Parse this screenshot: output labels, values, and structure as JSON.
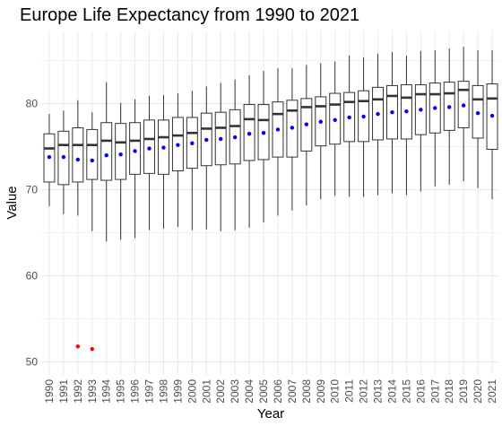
{
  "chart_data": {
    "type": "boxplot",
    "title": "Europe Life Expectancy from 1990 to 2021",
    "xlabel": "Year",
    "ylabel": "Value",
    "ylim": [
      48.5,
      88.5
    ],
    "yticks": [
      50,
      60,
      70,
      80
    ],
    "grid": true,
    "categories": [
      "1990",
      "1991",
      "1992",
      "1993",
      "1994",
      "1995",
      "1996",
      "1997",
      "1998",
      "1999",
      "2000",
      "2001",
      "2002",
      "2003",
      "2004",
      "2005",
      "2006",
      "2007",
      "2008",
      "2009",
      "2010",
      "2011",
      "2012",
      "2013",
      "2014",
      "2015",
      "2016",
      "2017",
      "2018",
      "2019",
      "2020",
      "2021"
    ],
    "boxes": [
      {
        "whisker_low": 68.1,
        "q1": 70.9,
        "median": 74.8,
        "q3": 76.5,
        "whisker_high": 78.8,
        "mean": 73.8
      },
      {
        "whisker_low": 67.2,
        "q1": 70.6,
        "median": 75.2,
        "q3": 76.8,
        "whisker_high": 79.2,
        "mean": 73.8
      },
      {
        "whisker_low": 67.0,
        "q1": 70.9,
        "median": 75.2,
        "q3": 77.2,
        "whisker_high": 80.4,
        "mean": 73.5
      },
      {
        "whisker_low": 65.2,
        "q1": 71.2,
        "median": 75.2,
        "q3": 77.0,
        "whisker_high": 79.0,
        "mean": 73.4
      },
      {
        "whisker_low": 64.0,
        "q1": 71.1,
        "median": 75.7,
        "q3": 77.8,
        "whisker_high": 82.5,
        "mean": 74.0
      },
      {
        "whisker_low": 64.2,
        "q1": 71.2,
        "median": 75.5,
        "q3": 77.7,
        "whisker_high": 80.1,
        "mean": 74.1
      },
      {
        "whisker_low": 64.4,
        "q1": 71.8,
        "median": 75.7,
        "q3": 77.8,
        "whisker_high": 80.5,
        "mean": 74.5
      },
      {
        "whisker_low": 65.3,
        "q1": 71.9,
        "median": 75.9,
        "q3": 78.1,
        "whisker_high": 80.9,
        "mean": 74.8
      },
      {
        "whisker_low": 65.5,
        "q1": 71.8,
        "median": 76.1,
        "q3": 78.1,
        "whisker_high": 81.0,
        "mean": 74.9
      },
      {
        "whisker_low": 65.7,
        "q1": 72.2,
        "median": 76.3,
        "q3": 78.4,
        "whisker_high": 81.2,
        "mean": 75.2
      },
      {
        "whisker_low": 65.3,
        "q1": 72.5,
        "median": 76.6,
        "q3": 78.4,
        "whisker_high": 81.5,
        "mean": 75.4
      },
      {
        "whisker_low": 65.4,
        "q1": 72.8,
        "median": 77.1,
        "q3": 78.9,
        "whisker_high": 82.0,
        "mean": 75.8
      },
      {
        "whisker_low": 65.2,
        "q1": 72.9,
        "median": 77.2,
        "q3": 79.0,
        "whisker_high": 82.4,
        "mean": 75.9
      },
      {
        "whisker_low": 65.3,
        "q1": 73.0,
        "median": 77.4,
        "q3": 79.3,
        "whisker_high": 82.8,
        "mean": 76.1
      },
      {
        "whisker_low": 65.6,
        "q1": 73.4,
        "median": 78.2,
        "q3": 79.9,
        "whisker_high": 83.3,
        "mean": 76.5
      },
      {
        "whisker_low": 66.2,
        "q1": 73.5,
        "median": 78.1,
        "q3": 79.9,
        "whisker_high": 83.8,
        "mean": 76.6
      },
      {
        "whisker_low": 67.0,
        "q1": 73.8,
        "median": 78.8,
        "q3": 80.2,
        "whisker_high": 84.1,
        "mean": 77.0
      },
      {
        "whisker_low": 67.6,
        "q1": 73.8,
        "median": 79.2,
        "q3": 80.4,
        "whisker_high": 84.1,
        "mean": 77.2
      },
      {
        "whisker_low": 68.2,
        "q1": 74.5,
        "median": 79.6,
        "q3": 80.6,
        "whisker_high": 84.5,
        "mean": 77.6
      },
      {
        "whisker_low": 68.9,
        "q1": 75.1,
        "median": 79.7,
        "q3": 80.8,
        "whisker_high": 84.7,
        "mean": 77.9
      },
      {
        "whisker_low": 69.3,
        "q1": 75.3,
        "median": 79.9,
        "q3": 81.2,
        "whisker_high": 84.9,
        "mean": 78.1
      },
      {
        "whisker_low": 69.2,
        "q1": 75.6,
        "median": 80.2,
        "q3": 81.3,
        "whisker_high": 85.6,
        "mean": 78.4
      },
      {
        "whisker_low": 69.2,
        "q1": 75.6,
        "median": 80.3,
        "q3": 81.5,
        "whisker_high": 85.4,
        "mean": 78.5
      },
      {
        "whisker_low": 69.4,
        "q1": 75.8,
        "median": 80.5,
        "q3": 81.9,
        "whisker_high": 85.8,
        "mean": 78.8
      },
      {
        "whisker_low": 69.6,
        "q1": 75.9,
        "median": 80.9,
        "q3": 82.1,
        "whisker_high": 86.0,
        "mean": 79.0
      },
      {
        "whisker_low": 69.4,
        "q1": 75.9,
        "median": 80.7,
        "q3": 82.2,
        "whisker_high": 85.6,
        "mean": 79.1
      },
      {
        "whisker_low": 69.8,
        "q1": 76.4,
        "median": 81.1,
        "q3": 82.2,
        "whisker_high": 86.1,
        "mean": 79.3
      },
      {
        "whisker_low": 70.4,
        "q1": 76.6,
        "median": 81.1,
        "q3": 82.4,
        "whisker_high": 86.2,
        "mean": 79.5
      },
      {
        "whisker_low": 70.6,
        "q1": 76.9,
        "median": 81.2,
        "q3": 82.5,
        "whisker_high": 86.4,
        "mean": 79.6
      },
      {
        "whisker_low": 71.0,
        "q1": 77.2,
        "median": 81.6,
        "q3": 82.6,
        "whisker_high": 86.6,
        "mean": 79.8
      },
      {
        "whisker_low": 70.2,
        "q1": 76.0,
        "median": 80.5,
        "q3": 82.1,
        "whisker_high": 86.2,
        "mean": 78.9
      },
      {
        "whisker_low": 68.9,
        "q1": 74.7,
        "median": 80.6,
        "q3": 82.3,
        "whisker_high": 86.2,
        "mean": 78.6
      }
    ],
    "outliers": [
      {
        "category": "1992",
        "value": 51.8
      },
      {
        "category": "1993",
        "value": 51.5
      }
    ],
    "colors": {
      "box_fill": "#ffffff",
      "box_line": "#333333",
      "median_line": "#333333",
      "mean_marker": "#0000ff",
      "outlier": "#ff0000",
      "grid": "#ebebeb",
      "tick_text": "#4d4d4d"
    }
  }
}
